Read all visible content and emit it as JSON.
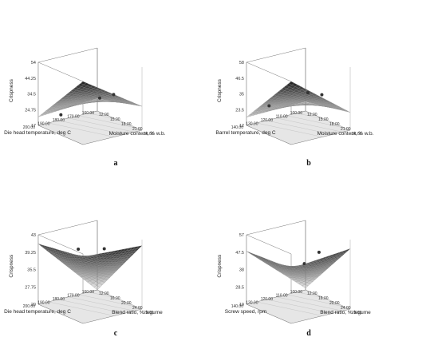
{
  "chart_data": [
    {
      "type": "surface",
      "panel_label": "a",
      "zlabel": "Crispness",
      "xlabel": "Die head temperature, deg C",
      "ylabel": "Moisture content, % w.b.",
      "z_ticks": [
        "17",
        "24.75",
        "34.5",
        "44.25",
        "54"
      ],
      "x_ticks": [
        "160.00",
        "170.00",
        "180.00",
        "190.00",
        "200.00"
      ],
      "y_ticks": [
        "12.00",
        "15.00",
        "18.00",
        "21.00",
        "24.00"
      ],
      "zlim": [
        17,
        54
      ],
      "surface": {
        "z_near": 24.5,
        "z_right": 31,
        "z_left": 22,
        "z_far": 54,
        "curvature": 0
      },
      "points": [
        {
          "u": 0.86,
          "v": 0.55,
          "z": 34
        },
        {
          "u": 0.45,
          "v": 0.78,
          "z": 38
        },
        {
          "u": 0.08,
          "v": 0.4,
          "z": 27
        }
      ]
    },
    {
      "type": "surface",
      "panel_label": "b",
      "zlabel": "Crispness",
      "xlabel": "Barrel temperature, deg C",
      "ylabel": "Moisture content, % w.b.",
      "z_ticks": [
        "12",
        "23.5",
        "35",
        "46.5",
        "58"
      ],
      "x_ticks": [
        "100.00",
        "110.00",
        "120.00",
        "130.00",
        "140.00"
      ],
      "y_ticks": [
        "12.00",
        "15.00",
        "18.00",
        "21.00",
        "24.00"
      ],
      "zlim": [
        12,
        58
      ],
      "surface": {
        "z_near": 19,
        "z_right": 25,
        "z_left": 18,
        "z_far": 58,
        "curvature": 0
      },
      "points": [
        {
          "u": 0.86,
          "v": 0.55,
          "z": 33
        },
        {
          "u": 0.45,
          "v": 0.78,
          "z": 42
        },
        {
          "u": 0.08,
          "v": 0.4,
          "z": 31
        }
      ]
    },
    {
      "type": "surface",
      "panel_label": "c",
      "zlabel": "Crispness",
      "xlabel": "Die head temperature, deg C",
      "ylabel": "Blend ratio, % legume",
      "z_ticks": [
        "20",
        "27.75",
        "35.5",
        "39.25",
        "43"
      ],
      "x_ticks": [
        "160.00",
        "170.00",
        "180.00",
        "190.00",
        "200.00"
      ],
      "y_ticks": [
        "12.00",
        "16.00",
        "20.00",
        "24.00",
        "28.00"
      ],
      "zlim": [
        20,
        43
      ],
      "surface": {
        "z_near": 20,
        "z_right": 41,
        "z_left": 40,
        "z_far": 42,
        "curvature": -2
      },
      "points": [
        {
          "u": 0.55,
          "v": 0.75,
          "z": 40.5
        },
        {
          "u": 0.45,
          "v": 0.3,
          "z": 38
        }
      ]
    },
    {
      "type": "surface",
      "panel_label": "d",
      "zlabel": "Crispness",
      "xlabel": "Screw speed, rpm",
      "ylabel": "Blend ratio, % legume",
      "z_ticks": [
        "19",
        "28.5",
        "38",
        "47.5",
        "57"
      ],
      "x_ticks": [
        "100.00",
        "110.00",
        "120.00",
        "130.00",
        "140.00"
      ],
      "y_ticks": [
        "12.00",
        "16.00",
        "20.00",
        "24.00",
        "28.00"
      ],
      "zlim": [
        19,
        57
      ],
      "surface": {
        "z_near": 20,
        "z_right": 52,
        "z_left": 48,
        "z_far": 49,
        "curvature": -4
      },
      "points": [
        {
          "u": 0.85,
          "v": 0.5,
          "z": 46
        },
        {
          "u": 0.45,
          "v": 0.7,
          "z": 45
        }
      ]
    }
  ]
}
